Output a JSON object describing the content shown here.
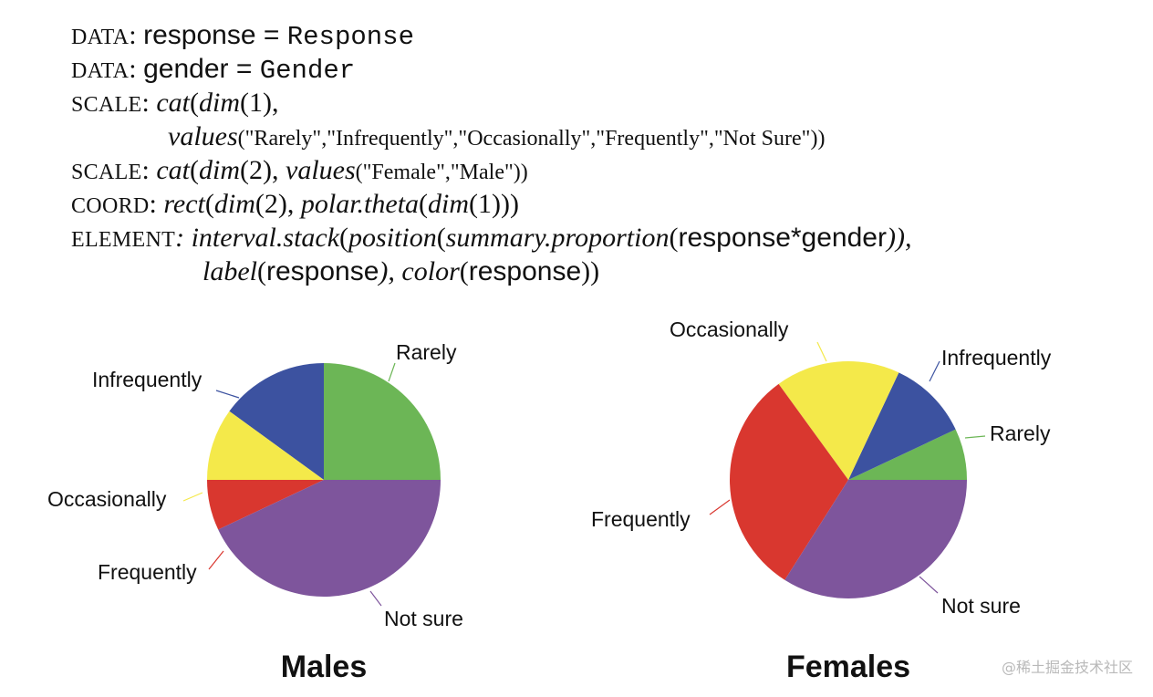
{
  "spec": {
    "line1": {
      "kw1": "DATA",
      "sep": ": ",
      "var": "response",
      "eq": " = ",
      "col": "Response"
    },
    "line2": {
      "kw1": "DATA",
      "sep": ": ",
      "var": "gender",
      "eq": " = ",
      "col": "Gender"
    },
    "line3": {
      "kw1": "SCALE",
      "text": ": ",
      "fn1": "cat",
      "fn2": "dim",
      "rest": "(1),"
    },
    "line4": {
      "fn": "values",
      "args": "(\"Rarely\",\"Infrequently\",\"Occasionally\",\"Frequently\",\"Not Sure\"))"
    },
    "line5": {
      "kw1": "SCALE",
      "text": ": ",
      "fn1": "cat",
      "fn2": "dim",
      "mid": "(2), ",
      "fn3": "values",
      "args": "(\"Female\",\"Male\"))"
    },
    "line6": {
      "kw1": "COORD",
      "text": ": ",
      "fn1": "rect",
      "fn2": "dim",
      "mid": "(2), ",
      "fn3": "polar.theta",
      "fn4": "dim",
      "end": "(1)))"
    },
    "line7": {
      "kw1": "ELEMENT",
      "text": ": ",
      "fn1": "interval.stack",
      "fn2": "position",
      "fn3": "summary.proportion",
      "var": "response*gender",
      "end": ")),"
    },
    "line8": {
      "fn1": "label",
      "var1": "response",
      "mid": "), ",
      "fn2": "color",
      "var2": "response",
      "end": "))"
    }
  },
  "chart_data": [
    {
      "type": "pie",
      "title": "Males",
      "categories": [
        "Rarely",
        "Infrequently",
        "Occasionally",
        "Frequently",
        "Not sure"
      ],
      "values": [
        0.25,
        0.15,
        0.1,
        0.07,
        0.43
      ],
      "colors": [
        "#6cb656",
        "#3c52a0",
        "#f4e94a",
        "#d9372f",
        "#7e559c"
      ]
    },
    {
      "type": "pie",
      "title": "Females",
      "categories": [
        "Rarely",
        "Infrequently",
        "Occasionally",
        "Frequently",
        "Not sure"
      ],
      "values": [
        0.07,
        0.11,
        0.17,
        0.31,
        0.34
      ],
      "colors": [
        "#6cb656",
        "#3c52a0",
        "#f4e94a",
        "#d9372f",
        "#7e559c"
      ]
    }
  ],
  "watermark": "@稀土掘金技术社区"
}
